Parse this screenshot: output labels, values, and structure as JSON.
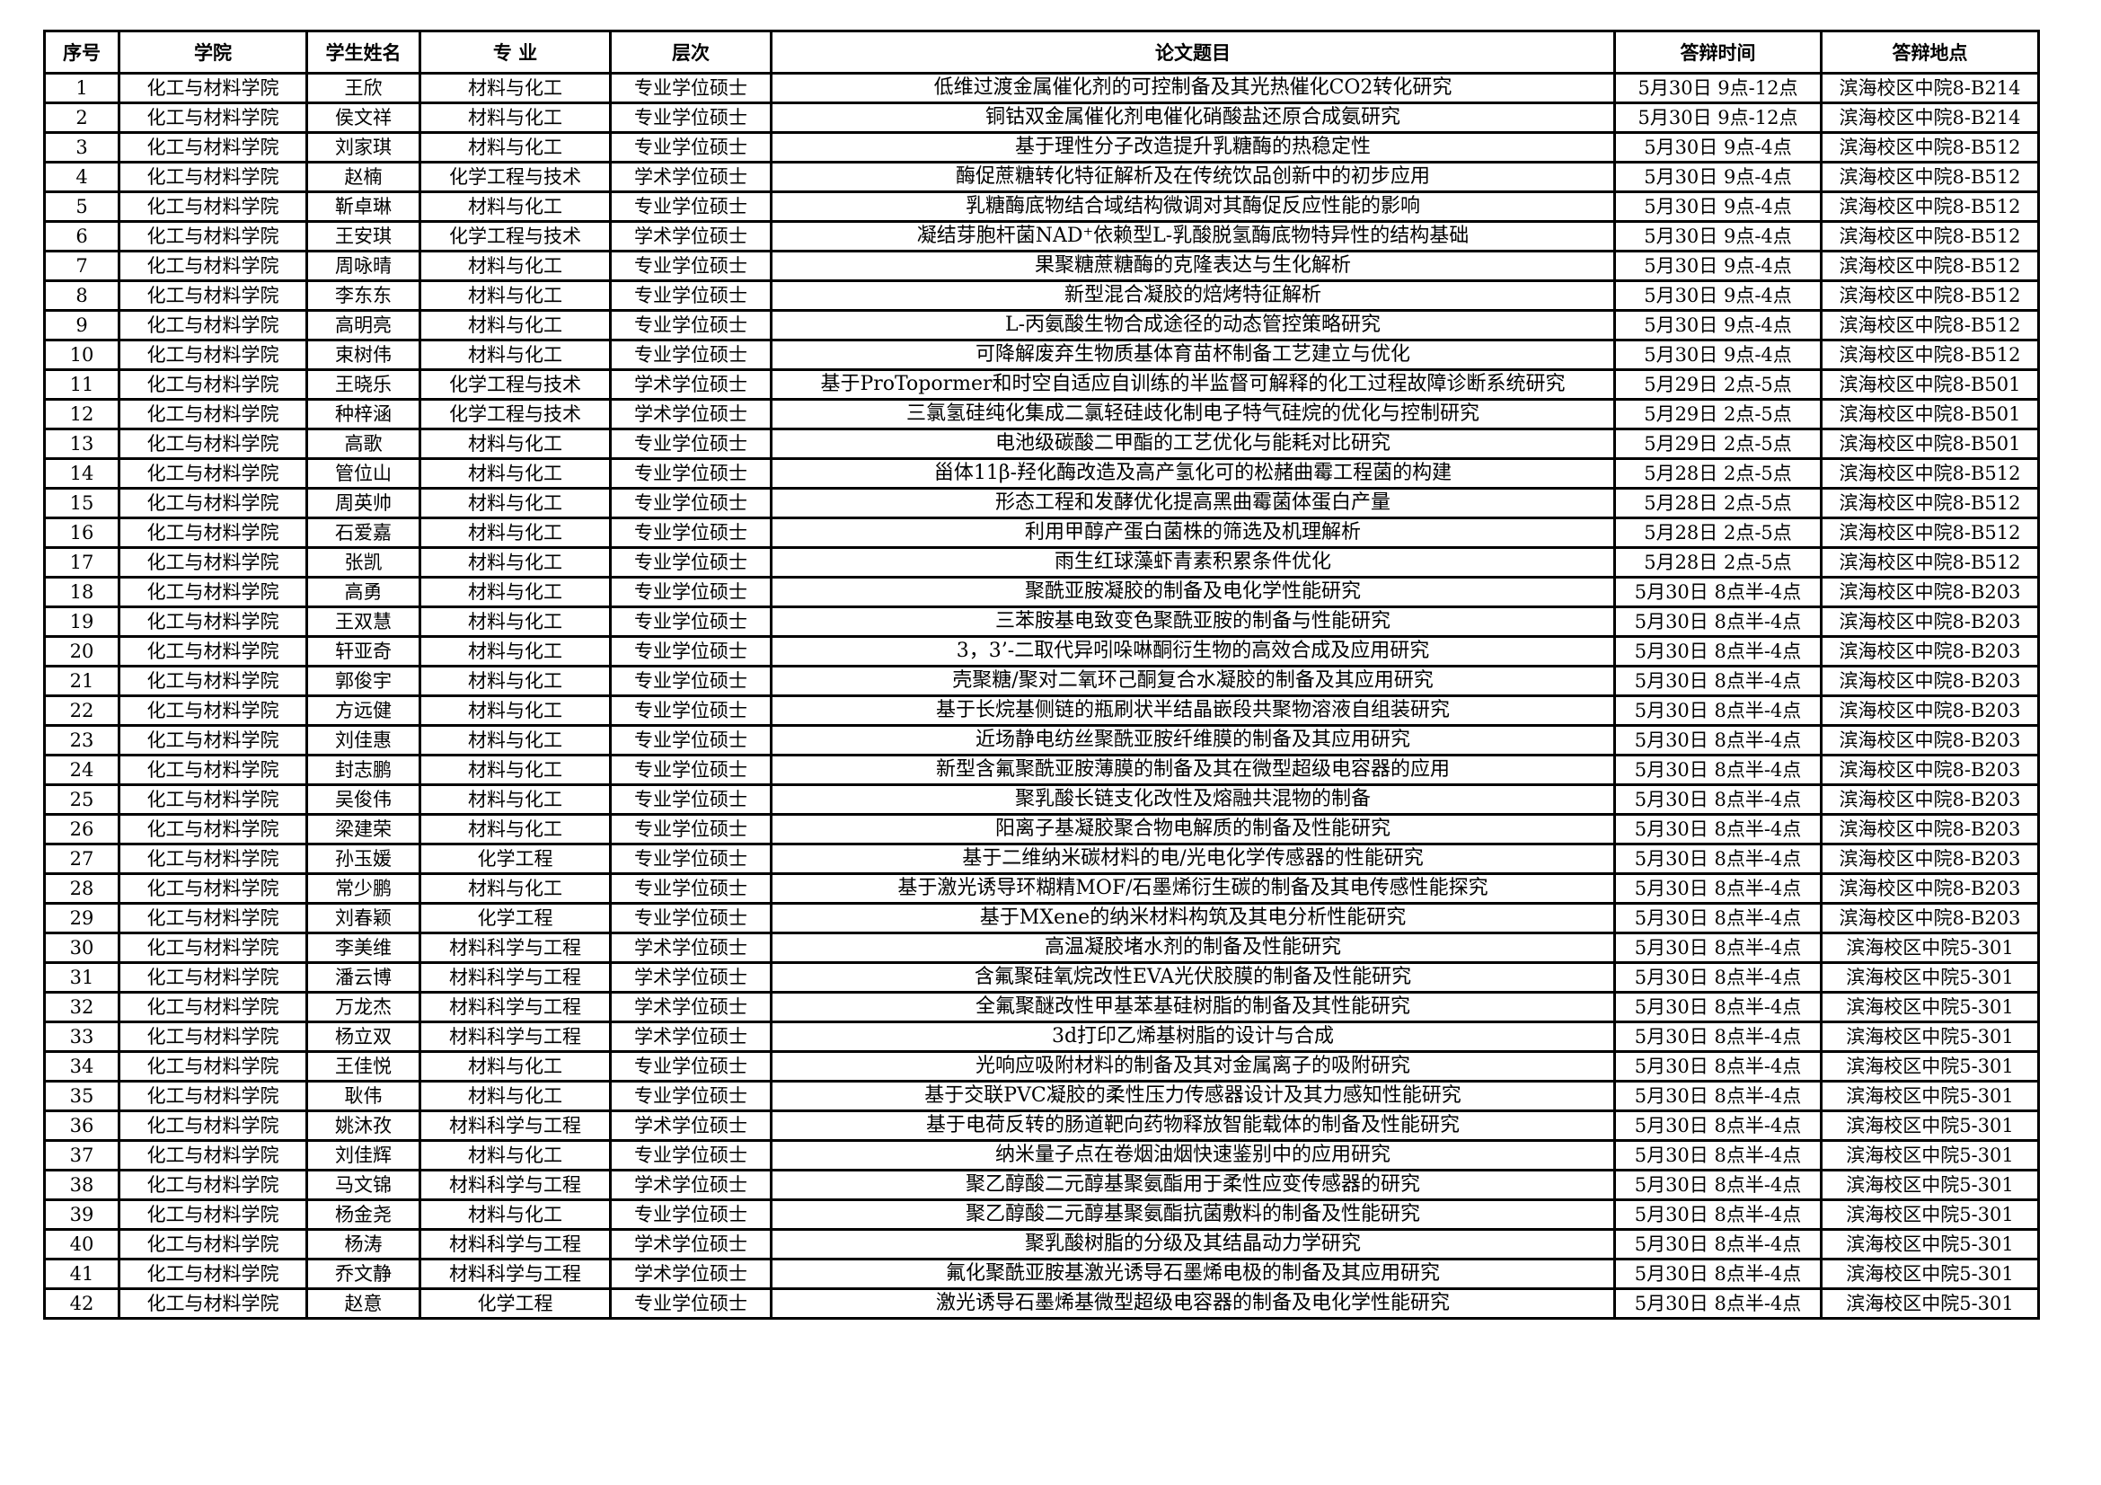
{
  "headers": [
    "序号",
    "学院",
    "学生姓名",
    "专 业",
    "层次",
    "论文题目",
    "答辩时间",
    "答辩地点"
  ],
  "rows": [
    [
      "1",
      "化工与材料学院",
      "王欣",
      "材料与化工",
      "专业学位硕士",
      "低维过渡金属催化剂的可控制备及其光热催化CO2转化研究",
      "5月30日  9点-12点",
      "滨海校区中院8-B214"
    ],
    [
      "2",
      "化工与材料学院",
      "侯文祥",
      "材料与化工",
      "专业学位硕士",
      "铜钴双金属催化剂电催化硝酸盐还原合成氨研究",
      "5月30日  9点-12点",
      "滨海校区中院8-B214"
    ],
    [
      "3",
      "化工与材料学院",
      "刘家琪",
      "材料与化工",
      "专业学位硕士",
      "基于理性分子改造提升乳糖酶的热稳定性",
      "5月30日  9点-4点",
      "滨海校区中院8-B512"
    ],
    [
      "4",
      "化工与材料学院",
      "赵楠",
      "化学工程与技术",
      "学术学位硕士",
      "酶促蔗糖转化特征解析及在传统饮品创新中的初步应用",
      "5月30日  9点-4点",
      "滨海校区中院8-B512"
    ],
    [
      "5",
      "化工与材料学院",
      "靳卓琳",
      "材料与化工",
      "专业学位硕士",
      "乳糖酶底物结合域结构微调对其酶促反应性能的影响",
      "5月30日  9点-4点",
      "滨海校区中院8-B512"
    ],
    [
      "6",
      "化工与材料学院",
      "王安琪",
      "化学工程与技术",
      "学术学位硕士",
      "凝结芽胞杆菌NAD⁺依赖型L-乳酸脱氢酶底物特异性的结构基础",
      "5月30日  9点-4点",
      "滨海校区中院8-B512"
    ],
    [
      "7",
      "化工与材料学院",
      "周咏晴",
      "材料与化工",
      "专业学位硕士",
      "果聚糖蔗糖酶的克隆表达与生化解析",
      "5月30日  9点-4点",
      "滨海校区中院8-B512"
    ],
    [
      "8",
      "化工与材料学院",
      "李东东",
      "材料与化工",
      "专业学位硕士",
      "新型混合凝胶的焙烤特征解析",
      "5月30日  9点-4点",
      "滨海校区中院8-B512"
    ],
    [
      "9",
      "化工与材料学院",
      "高明亮",
      "材料与化工",
      "专业学位硕士",
      "L-丙氨酸生物合成途径的动态管控策略研究",
      "5月30日  9点-4点",
      "滨海校区中院8-B512"
    ],
    [
      "10",
      "化工与材料学院",
      "束树伟",
      "材料与化工",
      "专业学位硕士",
      "可降解废弃生物质基体育苗杯制备工艺建立与优化",
      "5月30日  9点-4点",
      "滨海校区中院8-B512"
    ],
    [
      "11",
      "化工与材料学院",
      "王晓乐",
      "化学工程与技术",
      "学术学位硕士",
      "基于ProTopormer和时空自适应自训练的半监督可解释的化工过程故障诊断系统研究",
      "5月29日  2点-5点",
      "滨海校区中院8-B501"
    ],
    [
      "12",
      "化工与材料学院",
      "种梓涵",
      "化学工程与技术",
      "学术学位硕士",
      "三氯氢硅纯化集成二氯轻硅歧化制电子特气硅烷的优化与控制研究",
      "5月29日  2点-5点",
      "滨海校区中院8-B501"
    ],
    [
      "13",
      "化工与材料学院",
      "高歌",
      "材料与化工",
      "专业学位硕士",
      "电池级碳酸二甲酯的工艺优化与能耗对比研究",
      "5月29日  2点-5点",
      "滨海校区中院8-B501"
    ],
    [
      "14",
      "化工与材料学院",
      "管位山",
      "材料与化工",
      "专业学位硕士",
      "甾体11β-羟化酶改造及高产氢化可的松赭曲霉工程菌的构建",
      "5月28日  2点-5点",
      "滨海校区中院8-B512"
    ],
    [
      "15",
      "化工与材料学院",
      "周英帅",
      "材料与化工",
      "专业学位硕士",
      "形态工程和发酵优化提高黑曲霉菌体蛋白产量",
      "5月28日  2点-5点",
      "滨海校区中院8-B512"
    ],
    [
      "16",
      "化工与材料学院",
      "石爱嘉",
      "材料与化工",
      "专业学位硕士",
      "利用甲醇产蛋白菌株的筛选及机理解析",
      "5月28日  2点-5点",
      "滨海校区中院8-B512"
    ],
    [
      "17",
      "化工与材料学院",
      "张凯",
      "材料与化工",
      "专业学位硕士",
      "雨生红球藻虾青素积累条件优化",
      "5月28日  2点-5点",
      "滨海校区中院8-B512"
    ],
    [
      "18",
      "化工与材料学院",
      "高勇",
      "材料与化工",
      "专业学位硕士",
      "聚酰亚胺凝胶的制备及电化学性能研究",
      "5月30日 8点半-4点",
      "滨海校区中院8-B203"
    ],
    [
      "19",
      "化工与材料学院",
      "王双慧",
      "材料与化工",
      "专业学位硕士",
      "三苯胺基电致变色聚酰亚胺的制备与性能研究",
      "5月30日 8点半-4点",
      "滨海校区中院8-B203"
    ],
    [
      "20",
      "化工与材料学院",
      "轩亚奇",
      "材料与化工",
      "专业学位硕士",
      "3，3’-二取代异吲哚啉酮衍生物的高效合成及应用研究",
      "5月30日 8点半-4点",
      "滨海校区中院8-B203"
    ],
    [
      "21",
      "化工与材料学院",
      "郭俊宇",
      "材料与化工",
      "专业学位硕士",
      "壳聚糖/聚对二氧环己酮复合水凝胶的制备及其应用研究",
      "5月30日 8点半-4点",
      "滨海校区中院8-B203"
    ],
    [
      "22",
      "化工与材料学院",
      "方远健",
      "材料与化工",
      "专业学位硕士",
      "基于长烷基侧链的瓶刷状半结晶嵌段共聚物溶液自组装研究",
      "5月30日 8点半-4点",
      "滨海校区中院8-B203"
    ],
    [
      "23",
      "化工与材料学院",
      "刘佳惠",
      "材料与化工",
      "专业学位硕士",
      "近场静电纺丝聚酰亚胺纤维膜的制备及其应用研究",
      "5月30日 8点半-4点",
      "滨海校区中院8-B203"
    ],
    [
      "24",
      "化工与材料学院",
      "封志鹏",
      "材料与化工",
      "专业学位硕士",
      "新型含氟聚酰亚胺薄膜的制备及其在微型超级电容器的应用",
      "5月30日 8点半-4点",
      "滨海校区中院8-B203"
    ],
    [
      "25",
      "化工与材料学院",
      "吴俊伟",
      "材料与化工",
      "专业学位硕士",
      "聚乳酸长链支化改性及熔融共混物的制备",
      "5月30日 8点半-4点",
      "滨海校区中院8-B203"
    ],
    [
      "26",
      "化工与材料学院",
      "梁建荣",
      "材料与化工",
      "专业学位硕士",
      "阳离子基凝胶聚合物电解质的制备及性能研究",
      "5月30日 8点半-4点",
      "滨海校区中院8-B203"
    ],
    [
      "27",
      "化工与材料学院",
      "孙玉媛",
      "化学工程",
      "专业学位硕士",
      "基于二维纳米碳材料的电/光电化学传感器的性能研究",
      "5月30日 8点半-4点",
      "滨海校区中院8-B203"
    ],
    [
      "28",
      "化工与材料学院",
      "常少鹏",
      "材料与化工",
      "专业学位硕士",
      "基于激光诱导环糊精MOF/石墨烯衍生碳的制备及其电传感性能探究",
      "5月30日 8点半-4点",
      "滨海校区中院8-B203"
    ],
    [
      "29",
      "化工与材料学院",
      "刘春颖",
      "化学工程",
      "专业学位硕士",
      "基于MXene的纳米材料构筑及其电分析性能研究",
      "5月30日 8点半-4点",
      "滨海校区中院8-B203"
    ],
    [
      "30",
      "化工与材料学院",
      "李美维",
      "材料科学与工程",
      "学术学位硕士",
      "高温凝胶堵水剂的制备及性能研究",
      "5月30日 8点半-4点",
      "滨海校区中院5-301"
    ],
    [
      "31",
      "化工与材料学院",
      "潘云博",
      "材料科学与工程",
      "学术学位硕士",
      "含氟聚硅氧烷改性EVA光伏胶膜的制备及性能研究",
      "5月30日 8点半-4点",
      "滨海校区中院5-301"
    ],
    [
      "32",
      "化工与材料学院",
      "万龙杰",
      "材料科学与工程",
      "学术学位硕士",
      "全氟聚醚改性甲基苯基硅树脂的制备及其性能研究",
      "5月30日 8点半-4点",
      "滨海校区中院5-301"
    ],
    [
      "33",
      "化工与材料学院",
      "杨立双",
      "材料科学与工程",
      "学术学位硕士",
      "3d打印乙烯基树脂的设计与合成",
      "5月30日 8点半-4点",
      "滨海校区中院5-301"
    ],
    [
      "34",
      "化工与材料学院",
      "王佳悦",
      "材料与化工",
      "专业学位硕士",
      "光响应吸附材料的制备及其对金属离子的吸附研究",
      "5月30日 8点半-4点",
      "滨海校区中院5-301"
    ],
    [
      "35",
      "化工与材料学院",
      "耿伟",
      "材料与化工",
      "专业学位硕士",
      "基于交联PVC凝胶的柔性压力传感器设计及其力感知性能研究",
      "5月30日 8点半-4点",
      "滨海校区中院5-301"
    ],
    [
      "36",
      "化工与材料学院",
      "姚沐孜",
      "材料科学与工程",
      "学术学位硕士",
      "基于电荷反转的肠道靶向药物释放智能载体的制备及性能研究",
      "5月30日 8点半-4点",
      "滨海校区中院5-301"
    ],
    [
      "37",
      "化工与材料学院",
      "刘佳辉",
      "材料与化工",
      "专业学位硕士",
      "纳米量子点在卷烟油烟快速鉴别中的应用研究",
      "5月30日 8点半-4点",
      "滨海校区中院5-301"
    ],
    [
      "38",
      "化工与材料学院",
      "马文锦",
      "材料科学与工程",
      "学术学位硕士",
      "聚乙醇酸二元醇基聚氨酯用于柔性应变传感器的研究",
      "5月30日 8点半-4点",
      "滨海校区中院5-301"
    ],
    [
      "39",
      "化工与材料学院",
      "杨金尧",
      "材料与化工",
      "专业学位硕士",
      "聚乙醇酸二元醇基聚氨酯抗菌敷料的制备及性能研究",
      "5月30日 8点半-4点",
      "滨海校区中院5-301"
    ],
    [
      "40",
      "化工与材料学院",
      "杨涛",
      "材料科学与工程",
      "学术学位硕士",
      "聚乳酸树脂的分级及其结晶动力学研究",
      "5月30日 8点半-4点",
      "滨海校区中院5-301"
    ],
    [
      "41",
      "化工与材料学院",
      "乔文静",
      "材料科学与工程",
      "学术学位硕士",
      "氟化聚酰亚胺基激光诱导石墨烯电极的制备及其应用研究",
      "5月30日 8点半-4点",
      "滨海校区中院5-301"
    ],
    [
      "42",
      "化工与材料学院",
      "赵意",
      "化学工程",
      "专业学位硕士",
      "激光诱导石墨烯基微型超级电容器的制备及电化学性能研究",
      "5月30日 8点半-4点",
      "滨海校区中院5-301"
    ]
  ]
}
